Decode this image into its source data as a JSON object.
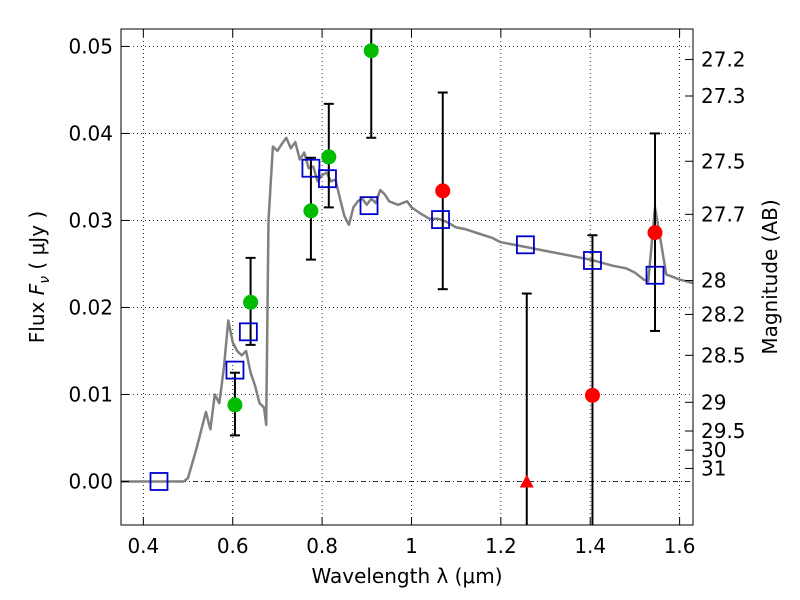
{
  "chart_data": {
    "type": "scatter",
    "xlabel": "Wavelength  λ (μm)",
    "ylabel": "Flux  F_ν  ( μJy )",
    "ylabel_parts": {
      "prefix": "Flux  ",
      "symbol": "F",
      "subscript": "ν",
      "suffix": "  ( μJy )"
    },
    "ylabel_right": "Magnitude (AB)",
    "xlim": [
      0.35,
      1.63
    ],
    "ylim": [
      -0.005,
      0.052
    ],
    "x_ticks": [
      0.4,
      0.6,
      0.8,
      1.0,
      1.2,
      1.4,
      1.6
    ],
    "x_tick_labels": [
      "0.4",
      "0.6",
      "0.8",
      "1",
      "1.2",
      "1.4",
      "1.6"
    ],
    "y_ticks": [
      0.0,
      0.01,
      0.02,
      0.03,
      0.04,
      0.05
    ],
    "y_tick_labels": [
      "0.00",
      "0.01",
      "0.02",
      "0.03",
      "0.04",
      "0.05"
    ],
    "right_ticks": [
      {
        "label": "27.2",
        "flux": 0.0485
      },
      {
        "label": "27.3",
        "flux": 0.0443
      },
      {
        "label": "27.5",
        "flux": 0.0368
      },
      {
        "label": "27.7",
        "flux": 0.0307
      },
      {
        "label": "28",
        "flux": 0.0231
      },
      {
        "label": "28.2",
        "flux": 0.0192
      },
      {
        "label": "28.5",
        "flux": 0.0145
      },
      {
        "label": "29",
        "flux": 0.0091
      },
      {
        "label": "29.5",
        "flux": 0.0058
      },
      {
        "label": "30",
        "flux": 0.0036
      },
      {
        "label": "31",
        "flux": 0.0015
      }
    ],
    "grid": true,
    "colors": {
      "model": "#808080",
      "model_photometry": "#0000cc",
      "green": "#00bb00",
      "red": "#ff0000",
      "errorbar": "#000000",
      "zero_line": "#000000"
    },
    "series": [
      {
        "name": "model SED",
        "style": "line",
        "points": [
          [
            0.35,
            0.0
          ],
          [
            0.49,
            0.0
          ],
          [
            0.5,
            0.0004
          ],
          [
            0.52,
            0.004
          ],
          [
            0.54,
            0.008
          ],
          [
            0.55,
            0.006
          ],
          [
            0.56,
            0.01
          ],
          [
            0.57,
            0.009
          ],
          [
            0.58,
            0.013
          ],
          [
            0.59,
            0.0185
          ],
          [
            0.6,
            0.016
          ],
          [
            0.61,
            0.015
          ],
          [
            0.62,
            0.0145
          ],
          [
            0.63,
            0.015
          ],
          [
            0.64,
            0.0125
          ],
          [
            0.65,
            0.011
          ],
          [
            0.66,
            0.009
          ],
          [
            0.67,
            0.0085
          ],
          [
            0.675,
            0.0065
          ],
          [
            0.68,
            0.03
          ],
          [
            0.69,
            0.0385
          ],
          [
            0.7,
            0.038
          ],
          [
            0.71,
            0.0388
          ],
          [
            0.72,
            0.0395
          ],
          [
            0.73,
            0.0383
          ],
          [
            0.74,
            0.039
          ],
          [
            0.75,
            0.037
          ],
          [
            0.76,
            0.0378
          ],
          [
            0.77,
            0.036
          ],
          [
            0.78,
            0.0362
          ],
          [
            0.79,
            0.0345
          ],
          [
            0.8,
            0.0352
          ],
          [
            0.81,
            0.0355
          ],
          [
            0.82,
            0.0345
          ],
          [
            0.83,
            0.0347
          ],
          [
            0.84,
            0.0325
          ],
          [
            0.85,
            0.0305
          ],
          [
            0.86,
            0.0295
          ],
          [
            0.87,
            0.0315
          ],
          [
            0.88,
            0.0322
          ],
          [
            0.89,
            0.0325
          ],
          [
            0.9,
            0.0318
          ],
          [
            0.91,
            0.0325
          ],
          [
            0.92,
            0.032
          ],
          [
            0.93,
            0.0335
          ],
          [
            0.94,
            0.033
          ],
          [
            0.95,
            0.0322
          ],
          [
            0.97,
            0.0318
          ],
          [
            0.99,
            0.0322
          ],
          [
            1.0,
            0.0315
          ],
          [
            1.02,
            0.0308
          ],
          [
            1.04,
            0.0302
          ],
          [
            1.06,
            0.0302
          ],
          [
            1.08,
            0.0298
          ],
          [
            1.1,
            0.0292
          ],
          [
            1.12,
            0.029
          ],
          [
            1.15,
            0.0285
          ],
          [
            1.18,
            0.028
          ],
          [
            1.2,
            0.0275
          ],
          [
            1.25,
            0.027
          ],
          [
            1.3,
            0.0265
          ],
          [
            1.35,
            0.026
          ],
          [
            1.4,
            0.0255
          ],
          [
            1.45,
            0.0248
          ],
          [
            1.48,
            0.0245
          ],
          [
            1.5,
            0.024
          ],
          [
            1.52,
            0.0232
          ],
          [
            1.53,
            0.023
          ],
          [
            1.545,
            0.0315
          ],
          [
            1.555,
            0.0285
          ],
          [
            1.57,
            0.0238
          ],
          [
            1.6,
            0.0232
          ],
          [
            1.63,
            0.0228
          ]
        ]
      },
      {
        "name": "model photometry",
        "style": "open-square",
        "points": [
          [
            0.435,
            0.0
          ],
          [
            0.605,
            0.0128
          ],
          [
            0.635,
            0.0172
          ],
          [
            0.775,
            0.036
          ],
          [
            0.812,
            0.0348
          ],
          [
            0.905,
            0.0317
          ],
          [
            1.065,
            0.0301
          ],
          [
            1.255,
            0.0272
          ],
          [
            1.405,
            0.0254
          ],
          [
            1.545,
            0.0237
          ]
        ]
      },
      {
        "name": "detections (green)",
        "style": "filled-circle",
        "points": [
          {
            "x": 0.605,
            "y": 0.0088,
            "yerr_low": 0.0053,
            "yerr_high": 0.0125
          },
          {
            "x": 0.64,
            "y": 0.0206,
            "yerr_low": 0.0157,
            "yerr_high": 0.0257
          },
          {
            "x": 0.775,
            "y": 0.0311,
            "yerr_low": 0.0255,
            "yerr_high": 0.0372
          },
          {
            "x": 0.815,
            "y": 0.0373,
            "yerr_low": 0.0315,
            "yerr_high": 0.0434
          },
          {
            "x": 0.91,
            "y": 0.0495,
            "yerr_low": 0.0395,
            "yerr_high": 0.052
          }
        ]
      },
      {
        "name": "detections (red)",
        "style": "filled-circle",
        "points": [
          {
            "x": 1.07,
            "y": 0.0334,
            "yerr_low": 0.0221,
            "yerr_high": 0.0447
          },
          {
            "x": 1.405,
            "y": 0.0099,
            "yerr_low": -0.005,
            "yerr_high": 0.0283
          },
          {
            "x": 1.545,
            "y": 0.0286,
            "yerr_low": 0.0173,
            "yerr_high": 0.04
          }
        ]
      },
      {
        "name": "non-detection (red triangle)",
        "style": "filled-triangle",
        "points": [
          {
            "x": 1.258,
            "y": 0.0,
            "yerr_low": -0.005,
            "yerr_high": 0.0216
          }
        ]
      }
    ]
  }
}
